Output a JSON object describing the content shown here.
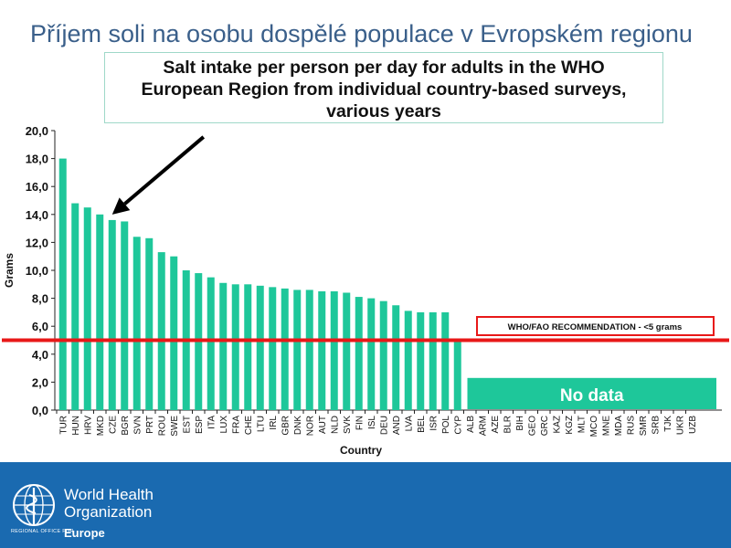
{
  "slide": {
    "title": "Příjem soli na osobu dospělé populace v Evropském regionu"
  },
  "chart_data": {
    "type": "bar",
    "title_lines": [
      "Salt intake per person per day for adults in the WHO",
      "European Region from individual country-based surveys,",
      "various years"
    ],
    "xlabel": "Country",
    "ylabel": "Grams",
    "ylim": [
      0,
      20
    ],
    "yticks": [
      "0,0",
      "2,0",
      "4,0",
      "6,0",
      "8,0",
      "10,0",
      "12,0",
      "14,0",
      "16,0",
      "18,0",
      "20,0"
    ],
    "categories": [
      "TUR",
      "HUN",
      "HRV",
      "MKD",
      "CZE",
      "BGR",
      "SVN",
      "PRT",
      "ROU",
      "SWE",
      "EST",
      "ESP",
      "ITA",
      "LUX",
      "FRA",
      "CHE",
      "LTU",
      "IRL",
      "GBR",
      "DNK",
      "NOR",
      "AUT",
      "NLD",
      "SVK",
      "FIN",
      "ISL",
      "DEU",
      "AND",
      "LVA",
      "BEL",
      "ISR",
      "POL",
      "CYP",
      "ALB",
      "ARM",
      "AZE",
      "BLR",
      "BIH",
      "GEO",
      "GRC",
      "KAZ",
      "KGZ",
      "MLT",
      "MCO",
      "MNE",
      "MDA",
      "RUS",
      "SMR",
      "SRB",
      "TJK",
      "UKR",
      "UZB"
    ],
    "values": [
      18.0,
      14.8,
      14.5,
      14.0,
      13.6,
      13.5,
      12.4,
      12.3,
      11.3,
      11.0,
      10.0,
      9.8,
      9.5,
      9.1,
      9.0,
      9.0,
      8.9,
      8.8,
      8.7,
      8.6,
      8.6,
      8.5,
      8.5,
      8.4,
      8.1,
      8.0,
      7.8,
      7.5,
      7.1,
      7.0,
      7.0,
      7.0,
      4.9,
      null,
      null,
      null,
      null,
      null,
      null,
      null,
      null,
      null,
      null,
      null,
      null,
      null,
      null,
      null,
      null,
      null,
      null,
      null
    ],
    "bar_color": "#1ec79a",
    "recommendation": {
      "value": 5,
      "label": "WHO/FAO RECOMMENDATION - <5 grams",
      "color": "#e81818"
    },
    "no_data_label": "No data",
    "highlight_category": "CZE"
  },
  "footer": {
    "org_line1": "World Health",
    "org_line2": "Organization",
    "regional_office": "REGIONAL OFFICE FOR",
    "region": "Europe",
    "bg_color": "#1a6ab0"
  }
}
